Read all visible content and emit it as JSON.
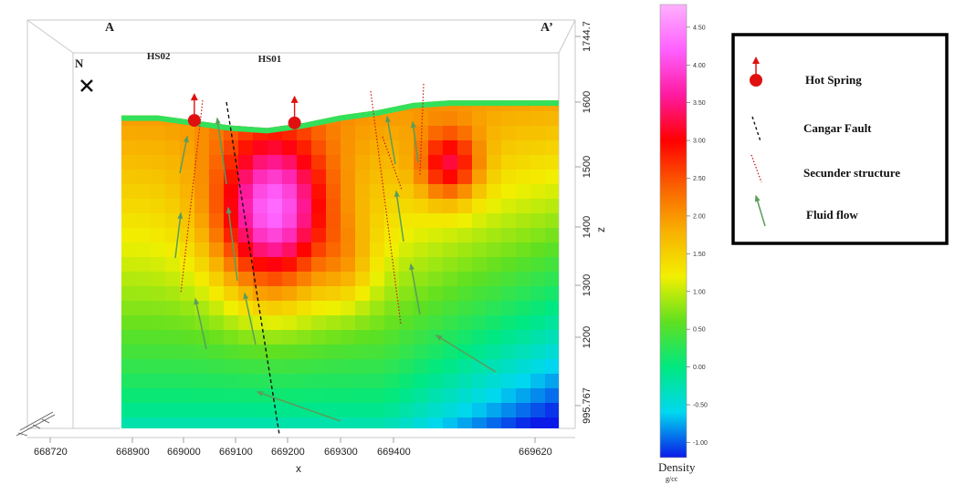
{
  "section": {
    "start": "A",
    "end": "A’",
    "north": "N",
    "north_marker": "x-mark-icon"
  },
  "springs": [
    {
      "label": "HS02",
      "x": 669020,
      "z": 1610
    },
    {
      "label": "HS01",
      "x": 669185,
      "z": 1605
    }
  ],
  "axes": {
    "x_label": "x",
    "z_label": "z",
    "x_ticks": [
      "668720",
      "668900",
      "669000",
      "669100",
      "669200",
      "669300",
      "669400",
      "669620"
    ],
    "z_ticks": [
      "1744.7",
      "1600",
      "1500",
      "1400",
      "1300",
      "1200",
      "995.767"
    ]
  },
  "model": {
    "x_range": [
      668900,
      669620
    ],
    "z_range": [
      995.767,
      1744.7
    ],
    "surface_z": [
      1620,
      1620,
      1610,
      1600,
      1595,
      1605,
      1620,
      1630,
      1645,
      1650,
      1650,
      1650,
      1650
    ],
    "anomalies": [
      {
        "name": "high-density-body",
        "x": 669150,
        "z": 1420,
        "peak_density": 4.5
      },
      {
        "name": "east-density-body",
        "x": 669440,
        "z": 1520,
        "peak_density": 3.6
      }
    ]
  },
  "colorbar": {
    "title": "Density",
    "unit": "g/cc",
    "min": -1.2,
    "max": 4.8,
    "ticks": [
      "4.50",
      "4.00",
      "3.50",
      "3.00",
      "2.50",
      "2.00",
      "1.50",
      "1.00",
      "0.50",
      "0.00",
      "-0.50",
      "-1.00"
    ],
    "colors": [
      "#0a1ae8",
      "#00d8f0",
      "#00e880",
      "#60e020",
      "#f2f000",
      "#f8b000",
      "#fb6000",
      "#ff0000",
      "#ff1aa0",
      "#ff60ff",
      "#ffb0ff"
    ]
  },
  "legend": {
    "items": [
      {
        "label": "Hot Spring",
        "icon": "hot-spring-icon"
      },
      {
        "label": "Cangar Fault",
        "icon": "black-dashed-line-icon"
      },
      {
        "label": "Secunder structure",
        "icon": "red-dotted-line-icon"
      },
      {
        "label": "Fluid flow",
        "icon": "green-arrow-icon"
      }
    ]
  },
  "colors": {
    "fault": "#111111",
    "secondary": "#cc1a1a",
    "fluid": "#5a9e5a",
    "spring": "#e01010",
    "box": "#c8c8c8"
  }
}
